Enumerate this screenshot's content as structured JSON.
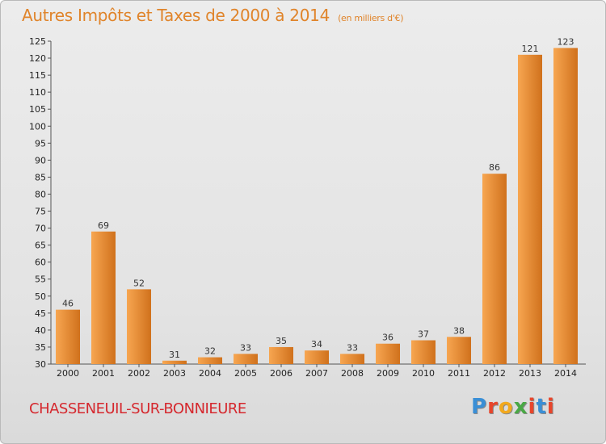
{
  "header": {
    "title": "Autres Impôts et Taxes de 2000 à 2014",
    "subtitle": "(en milliers d'€)"
  },
  "footer": {
    "commune": "CHASSENEUIL-SUR-BONNIEURE",
    "logo": "Proxiti"
  },
  "colors": {
    "bar_light": "#f7a651",
    "bar_dark": "#d0711c",
    "title": "#e0842a",
    "commune": "#d5282e"
  },
  "chart_data": {
    "type": "bar",
    "title": "Autres Impôts et Taxes de 2000 à 2014",
    "subtitle": "(en milliers d'€)",
    "categories": [
      "2000",
      "2001",
      "2002",
      "2003",
      "2004",
      "2005",
      "2006",
      "2007",
      "2008",
      "2009",
      "2010",
      "2011",
      "2012",
      "2013",
      "2014"
    ],
    "values": [
      46,
      69,
      52,
      31,
      32,
      33,
      35,
      34,
      33,
      36,
      37,
      38,
      86,
      121,
      123
    ],
    "xlabel": "",
    "ylabel": "",
    "ylim": [
      30,
      125
    ],
    "yticks": [
      30,
      35,
      40,
      45,
      50,
      55,
      60,
      65,
      70,
      75,
      80,
      85,
      90,
      95,
      100,
      105,
      110,
      115,
      120,
      125
    ],
    "grid": false,
    "legend": "none"
  }
}
